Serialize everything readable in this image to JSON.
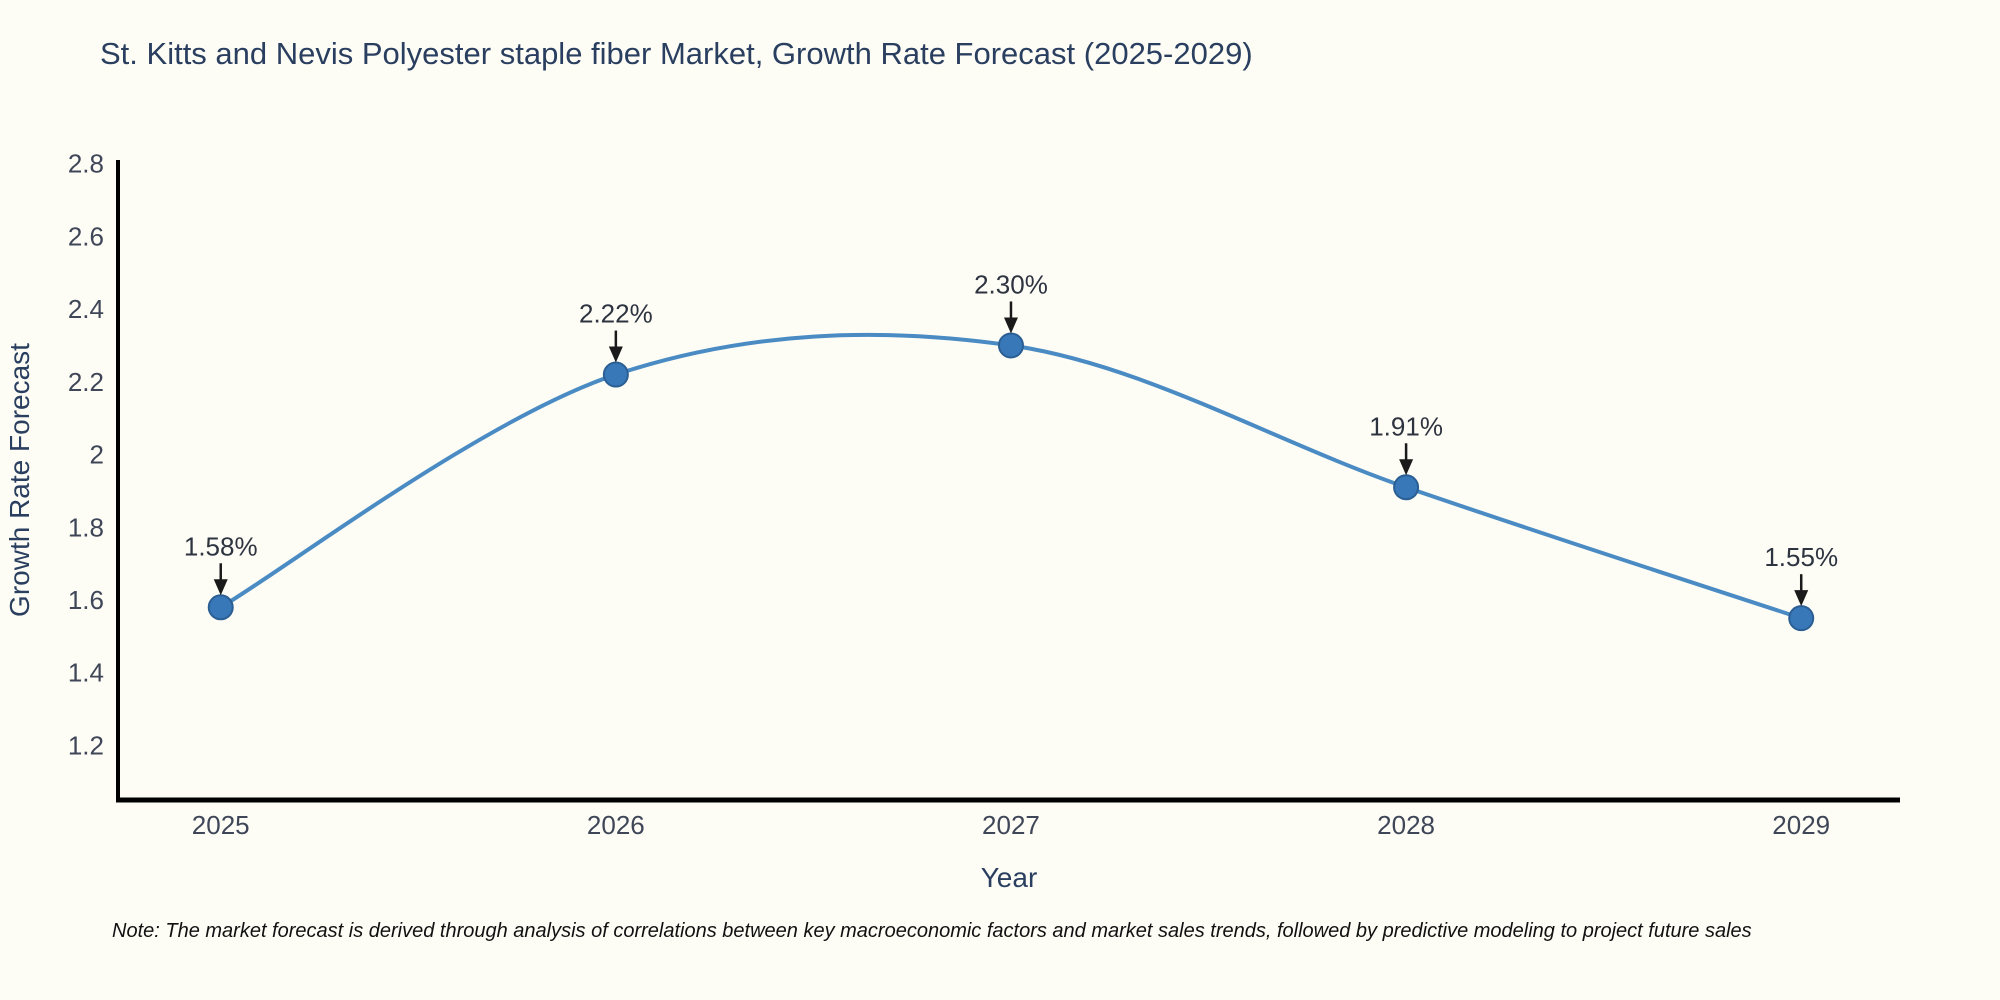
{
  "chart_data": {
    "type": "line",
    "title": "St. Kitts and Nevis Polyester staple fiber Market, Growth Rate Forecast (2025-2029)",
    "xlabel": "Year",
    "ylabel": "Growth Rate Forecast",
    "x": [
      2025,
      2026,
      2027,
      2028,
      2029
    ],
    "y": [
      1.58,
      2.22,
      2.3,
      1.91,
      1.55
    ],
    "point_labels": [
      "1.58%",
      "2.22%",
      "2.30%",
      "1.91%",
      "1.55%"
    ],
    "x_tick_labels": [
      "2025",
      "2026",
      "2027",
      "2028",
      "2029"
    ],
    "y_ticks": [
      2.8,
      2.6,
      2.4,
      2.2,
      2.0,
      1.8,
      1.6,
      1.4,
      1.2
    ],
    "y_tick_labels": [
      "2.8",
      "2.6",
      "2.4",
      "2.2",
      "2",
      "1.8",
      "1.6",
      "1.4",
      "1.2"
    ],
    "xlim": [
      2024.74,
      2029.25
    ],
    "ylim": [
      1.05,
      2.81
    ],
    "grid": false,
    "legend": "none",
    "line_shape": "spline",
    "marker": "circle",
    "annotation_style": "down-arrow",
    "colors": {
      "background": "#fdfdf6",
      "line": "#4a8bc4",
      "marker": "#3878b8",
      "marker_edge": "#2b5f94",
      "axis": "#000000",
      "tick_text": "#3f4657",
      "annotation_text": "#2e3340",
      "annotation_arrow": "#1a1a1a",
      "title_text": "#2a3f5f"
    }
  },
  "note": "Note: The market forecast is derived through analysis of correlations between key macroeconomic factors and market sales trends, followed by predictive modeling to project future sales"
}
